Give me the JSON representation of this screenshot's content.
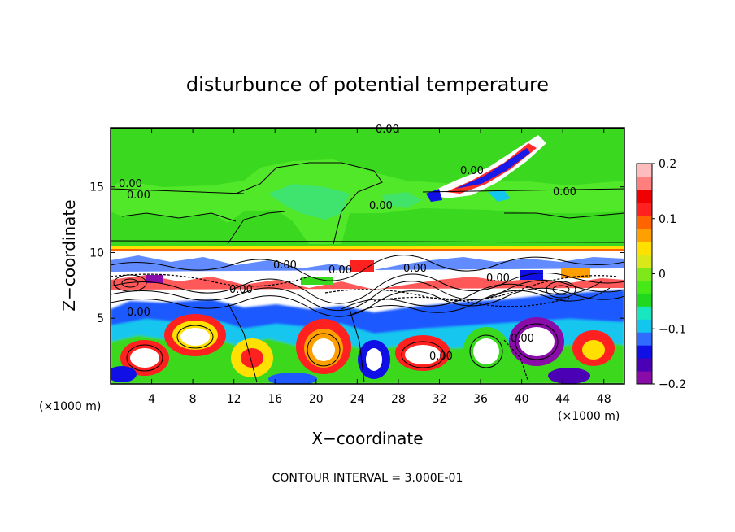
{
  "chart_data": {
    "type": "heatmap",
    "title": "disturbunce of potential temperature",
    "xlabel": "X−coordinate",
    "ylabel": "Z−coordinate",
    "x_unit": "(×1000 m)",
    "z_unit": "(×1000 m)",
    "xlim": [
      0,
      50
    ],
    "ylim": [
      0,
      19.5
    ],
    "x_ticks": [
      4,
      8,
      12,
      16,
      20,
      24,
      28,
      32,
      36,
      40,
      44,
      48
    ],
    "y_ticks": [
      5,
      10,
      15
    ],
    "colorbar": {
      "min": -0.2,
      "max": 0.2,
      "ticks": [
        0.2,
        0.1,
        0,
        -0.1,
        -0.2
      ],
      "tick_labels": [
        "0.2",
        "0.1",
        "0",
        "−0.1",
        "−0.2"
      ],
      "colors": [
        "#8a0ca8",
        "#4b00b6",
        "#1010e6",
        "#2f6bff",
        "#12c6ee",
        "#18e6c0",
        "#20d81e",
        "#46e818",
        "#7fe81a",
        "#d8e818",
        "#ffe000",
        "#ffa000",
        "#ff6400",
        "#ff2020",
        "#f00000",
        "#ff7e7e",
        "#ffbcbc"
      ]
    },
    "contour_labels": [
      "0.00",
      "0.00",
      "0.00",
      "0.00",
      "0.00",
      "0.00",
      "0.00",
      "0.00",
      "0.00",
      "0.00",
      "0.00",
      "0.00",
      "0.00",
      "0.00"
    ],
    "contour_interval_text": "CONTOUR INTERVAL = 3.000E-01"
  }
}
